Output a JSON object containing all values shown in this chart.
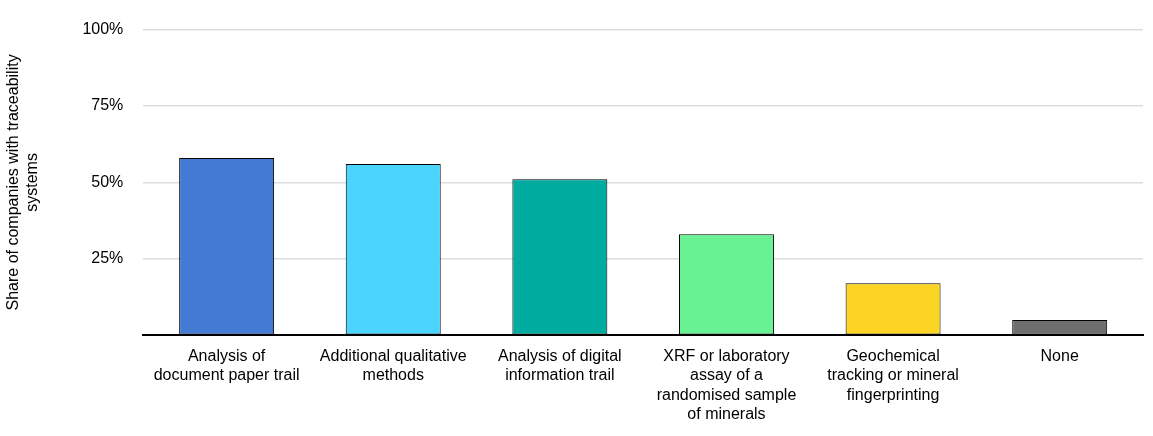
{
  "chart_data": {
    "type": "bar",
    "ylabel": "Share of companies with traceability systems",
    "categories": [
      "Analysis of document paper trail",
      "Additional qualitative methods",
      "Analysis of digital information trail",
      "XRF or laboratory assay of a randomised sample of minerals",
      "Geochemical tracking or mineral fingerprinting",
      "None"
    ],
    "values": [
      58,
      56,
      51,
      33,
      17,
      5
    ],
    "colors": [
      "#4479d4",
      "#4bd4fe",
      "#00ab9f",
      "#68f293",
      "#fcd424",
      "#6e6e6e"
    ],
    "ylim": [
      0,
      100
    ],
    "yticks": [
      {
        "value": 0,
        "label": null
      },
      {
        "value": 25,
        "label": "25%"
      },
      {
        "value": 50,
        "label": "50%"
      },
      {
        "value": 75,
        "label": "75%"
      },
      {
        "value": 100,
        "label": "100%"
      }
    ],
    "grid": "y"
  }
}
